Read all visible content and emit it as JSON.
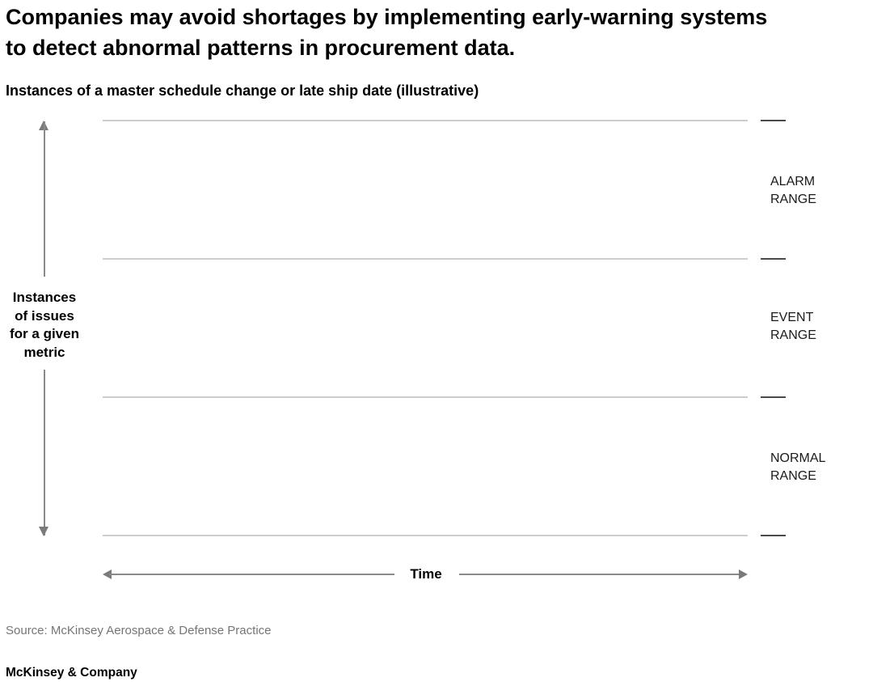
{
  "header": {
    "title_lines": [
      "Companies may avoid shortages by implementing early-warning systems",
      "to detect abnormal patterns in procurement data."
    ]
  },
  "chart": {
    "subtitle": "Instances of a master schedule change or late ship date (illustrative)",
    "y_axis_label_lines": [
      "Instances",
      "of issues",
      "for a given",
      "metric"
    ],
    "x_axis_label": "Time",
    "ranges": [
      {
        "label": "ALARM RANGE"
      },
      {
        "label": "EVENT RANGE"
      },
      {
        "label": "NORMAL RANGE"
      }
    ]
  },
  "chart_data": {
    "type": "band",
    "title": "Instances of a master schedule change or late ship date (illustrative)",
    "xlabel": "Time",
    "ylabel": "Instances of issues for a given metric",
    "bands": [
      {
        "label": "NORMAL RANGE",
        "y_span_relative": [
          0,
          0.333
        ]
      },
      {
        "label": "EVENT RANGE",
        "y_span_relative": [
          0.333,
          0.667
        ]
      },
      {
        "label": "ALARM RANGE",
        "y_span_relative": [
          0.667,
          1.0
        ]
      }
    ],
    "boundaries_relative": [
      0,
      0.333,
      0.667,
      1.0
    ],
    "grid": "four horizontal boundary lines at equal spacing, tick marks at right edge",
    "legend_position": "right",
    "notes": "Illustrative exhibit; no numeric values shown"
  },
  "footer": {
    "source": "Source: McKinsey Aerospace & Defense Practice",
    "brand": "McKinsey & Company"
  },
  "colors": {
    "boundary_line": "#cdcdcd",
    "tick": "#4a4a4a",
    "arrow": "#7a7a7a",
    "text": "#000000",
    "source_text": "#757575"
  }
}
